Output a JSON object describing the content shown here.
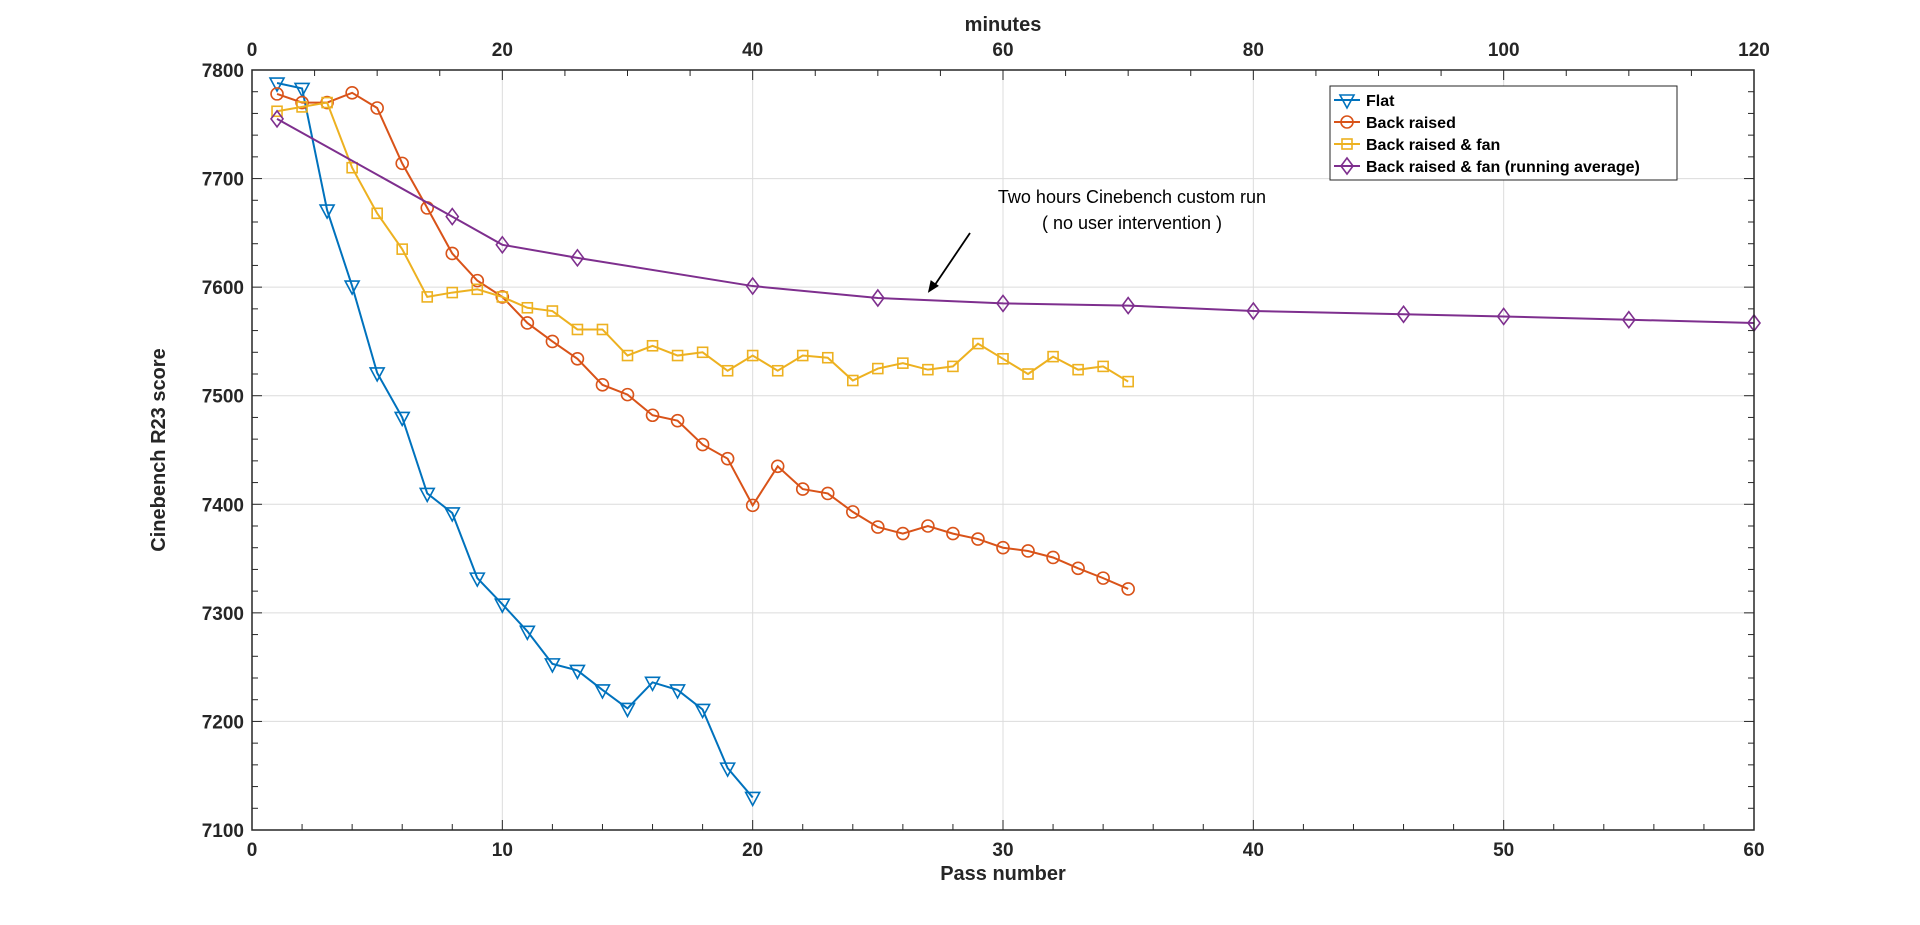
{
  "chart_data": {
    "type": "line",
    "title": "",
    "xlabel": "Pass number",
    "ylabel": "Cinebench R23 score",
    "x2label": "minutes",
    "xlim": [
      0,
      60
    ],
    "ylim": [
      7100,
      7800
    ],
    "x2lim": [
      0,
      120
    ],
    "xticks": [
      0,
      10,
      20,
      30,
      40,
      50,
      60
    ],
    "yticks": [
      7100,
      7200,
      7300,
      7400,
      7500,
      7600,
      7700,
      7800
    ],
    "x2ticks": [
      0,
      20,
      40,
      60,
      80,
      100,
      120
    ],
    "grid": true,
    "legend_position": "top-right",
    "annotation": {
      "lines": [
        "Two hours Cinebench custom run",
        "( no user intervention )"
      ],
      "arrow_target": {
        "x": 27,
        "y": 7592
      }
    },
    "series": [
      {
        "name": "Flat",
        "color": "#0072BD",
        "marker": "triangle-down",
        "x": [
          1,
          2,
          3,
          4,
          5,
          6,
          7,
          8,
          9,
          10,
          11,
          12,
          13,
          14,
          15,
          16,
          17,
          18,
          19,
          20
        ],
        "values": [
          7788,
          7783,
          7671,
          7601,
          7521,
          7480,
          7410,
          7392,
          7332,
          7308,
          7283,
          7253,
          7247,
          7229,
          7212,
          7236,
          7229,
          7211,
          7157,
          7130
        ]
      },
      {
        "name": "Back raised",
        "color": "#D95319",
        "marker": "circle",
        "x": [
          1,
          2,
          3,
          4,
          5,
          6,
          7,
          8,
          9,
          10,
          11,
          12,
          13,
          14,
          15,
          16,
          17,
          18,
          19,
          20,
          21,
          22,
          23,
          24,
          25,
          26,
          27,
          28,
          29,
          30,
          31,
          32,
          33,
          34,
          35
        ],
        "values": [
          7778,
          7770,
          7770,
          7779,
          7765,
          7714,
          7673,
          7631,
          7606,
          7591,
          7567,
          7550,
          7534,
          7510,
          7501,
          7482,
          7477,
          7455,
          7442,
          7399,
          7435,
          7414,
          7410,
          7393,
          7379,
          7373,
          7380,
          7373,
          7368,
          7360,
          7357,
          7351,
          7341,
          7332,
          7322
        ]
      },
      {
        "name": "Back raised & fan",
        "color": "#EDB120",
        "marker": "square",
        "x": [
          1,
          2,
          3,
          4,
          5,
          6,
          7,
          8,
          9,
          10,
          11,
          12,
          13,
          14,
          15,
          16,
          17,
          18,
          19,
          20,
          21,
          22,
          23,
          24,
          25,
          26,
          27,
          28,
          29,
          30,
          31,
          32,
          33,
          34,
          35
        ],
        "values": [
          7762,
          7766,
          7770,
          7710,
          7668,
          7635,
          7591,
          7595,
          7598,
          7591,
          7581,
          7578,
          7561,
          7561,
          7537,
          7546,
          7537,
          7540,
          7523,
          7537,
          7523,
          7537,
          7535,
          7514,
          7525,
          7530,
          7524,
          7527,
          7548,
          7534,
          7520,
          7536,
          7524,
          7527,
          7513
        ]
      },
      {
        "name": "Back raised & fan (running average)",
        "color": "#7E2F8E",
        "marker": "diamond",
        "x": [
          1,
          8,
          10,
          13,
          20,
          25,
          30,
          35,
          40,
          46,
          50,
          55,
          60
        ],
        "values": [
          7755,
          7665,
          7639,
          7627,
          7601,
          7590,
          7585,
          7583,
          7578,
          7575,
          7573,
          7570,
          7567
        ]
      }
    ]
  }
}
